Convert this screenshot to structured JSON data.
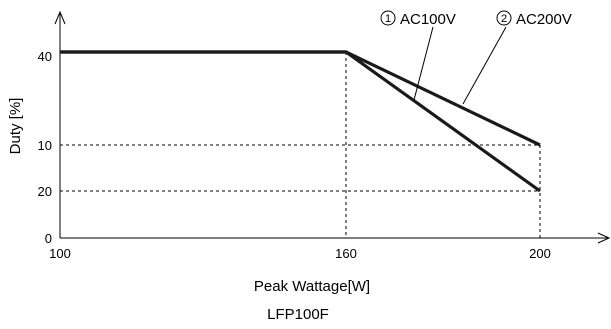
{
  "chart_data": {
    "type": "line",
    "title": "LFP100F",
    "xlabel": "Peak Wattage[W]",
    "ylabel": "Duty [%]",
    "xlim": [
      100,
      200
    ],
    "ylim": [
      0,
      45
    ],
    "x_ticks": [
      100,
      160,
      200
    ],
    "y_ticks": [
      0,
      10,
      20,
      40
    ],
    "grid": "dashed reference lines at x=160, x=200, y=10, y=20",
    "series": [
      {
        "name": "AC100V",
        "marker": "1",
        "x": [
          100,
          160,
          200
        ],
        "y": [
          40,
          40,
          10
        ]
      },
      {
        "name": "AC200V",
        "marker": "2",
        "x": [
          100,
          160,
          200
        ],
        "y": [
          40,
          40,
          20
        ]
      }
    ]
  },
  "legend": {
    "items": [
      {
        "marker": "1",
        "label": "AC100V"
      },
      {
        "marker": "2",
        "label": "AC200V"
      }
    ]
  }
}
